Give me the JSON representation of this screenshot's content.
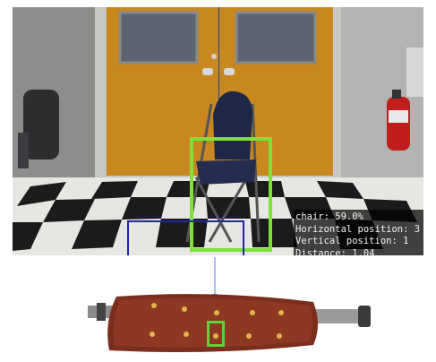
{
  "camera_view": {
    "detection": {
      "label": "chair: 59.0%",
      "horizontal": "Horizontal position: 3",
      "vertical": "Vertical position: 1",
      "distance": "Distance: 1.04"
    },
    "colors": {
      "detection_box": "#7fe03a",
      "floor_zone_box": "#2226a8",
      "readout_bg": "#000000"
    }
  },
  "haptic_belt": {
    "active_marker_color": "#5fd13a",
    "vibration_motor_count": 10
  },
  "icons": {
    "arrow": "arrow-down-icon",
    "fire_extinguisher": "fire-extinguisher-icon"
  }
}
